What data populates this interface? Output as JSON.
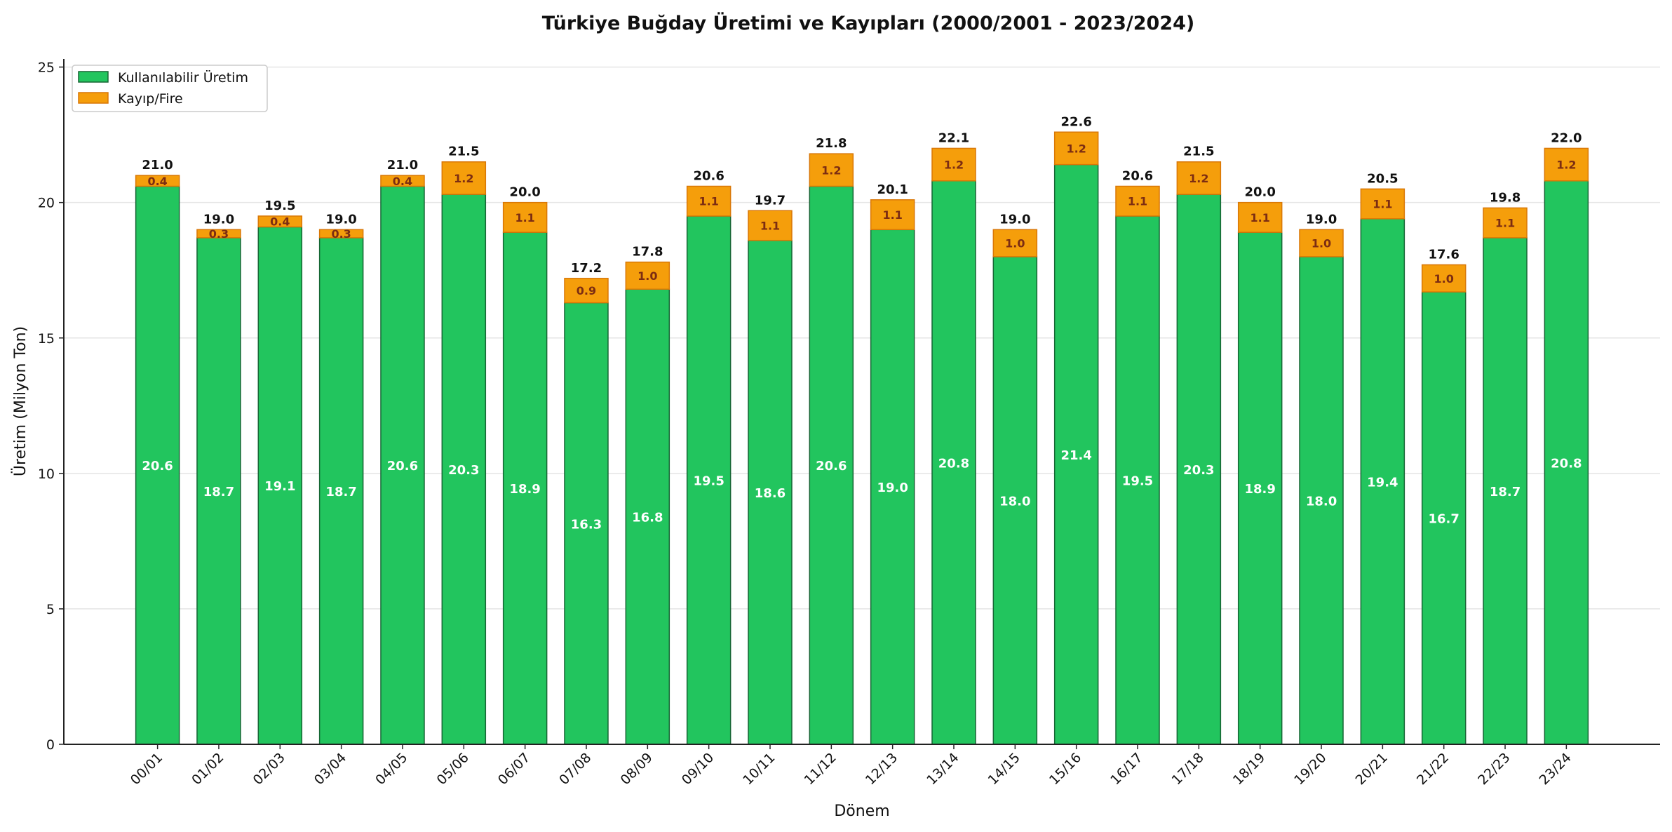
{
  "chart_data": {
    "type": "bar",
    "stacked": true,
    "title": "Türkiye Buğday Üretimi ve Kayıpları (2000/2001 - 2023/2024)",
    "xlabel": "Dönem",
    "ylabel": "Üretim (Milyon Ton)",
    "ylim": [
      0,
      25.3
    ],
    "yticks": [
      0,
      5,
      10,
      15,
      20,
      25
    ],
    "grid": "y",
    "legend_position": "top-left",
    "categories": [
      "00/01",
      "01/02",
      "02/03",
      "03/04",
      "04/05",
      "05/06",
      "06/07",
      "07/08",
      "08/09",
      "09/10",
      "10/11",
      "11/12",
      "12/13",
      "13/14",
      "14/15",
      "15/16",
      "16/17",
      "17/18",
      "18/19",
      "19/20",
      "20/21",
      "21/22",
      "22/23",
      "23/24"
    ],
    "series": [
      {
        "name": "Kullanılabilir Üretim",
        "color": "#22c55e",
        "edge": "#166534",
        "label_color": "#ffffff",
        "values": [
          20.6,
          18.7,
          19.1,
          18.7,
          20.6,
          20.3,
          18.9,
          16.3,
          16.8,
          19.5,
          18.6,
          20.6,
          19.0,
          20.8,
          18.0,
          21.4,
          19.5,
          20.3,
          18.9,
          18.0,
          19.4,
          16.7,
          18.7,
          20.8
        ]
      },
      {
        "name": "Kayıp/Fire",
        "color": "#f59e0b",
        "edge": "#d97706",
        "label_color": "#7c2d12",
        "values": [
          0.4,
          0.3,
          0.4,
          0.3,
          0.4,
          1.2,
          1.1,
          0.9,
          1.0,
          1.1,
          1.1,
          1.2,
          1.1,
          1.2,
          1.0,
          1.2,
          1.1,
          1.2,
          1.1,
          1.0,
          1.1,
          1.0,
          1.1,
          1.2
        ]
      }
    ],
    "totals": [
      21.0,
      19.0,
      19.5,
      19.0,
      21.0,
      21.5,
      20.0,
      17.2,
      17.8,
      20.6,
      19.7,
      21.8,
      20.1,
      22.1,
      19.0,
      22.6,
      20.6,
      21.5,
      20.0,
      19.0,
      20.5,
      17.6,
      19.8,
      22.0
    ]
  }
}
